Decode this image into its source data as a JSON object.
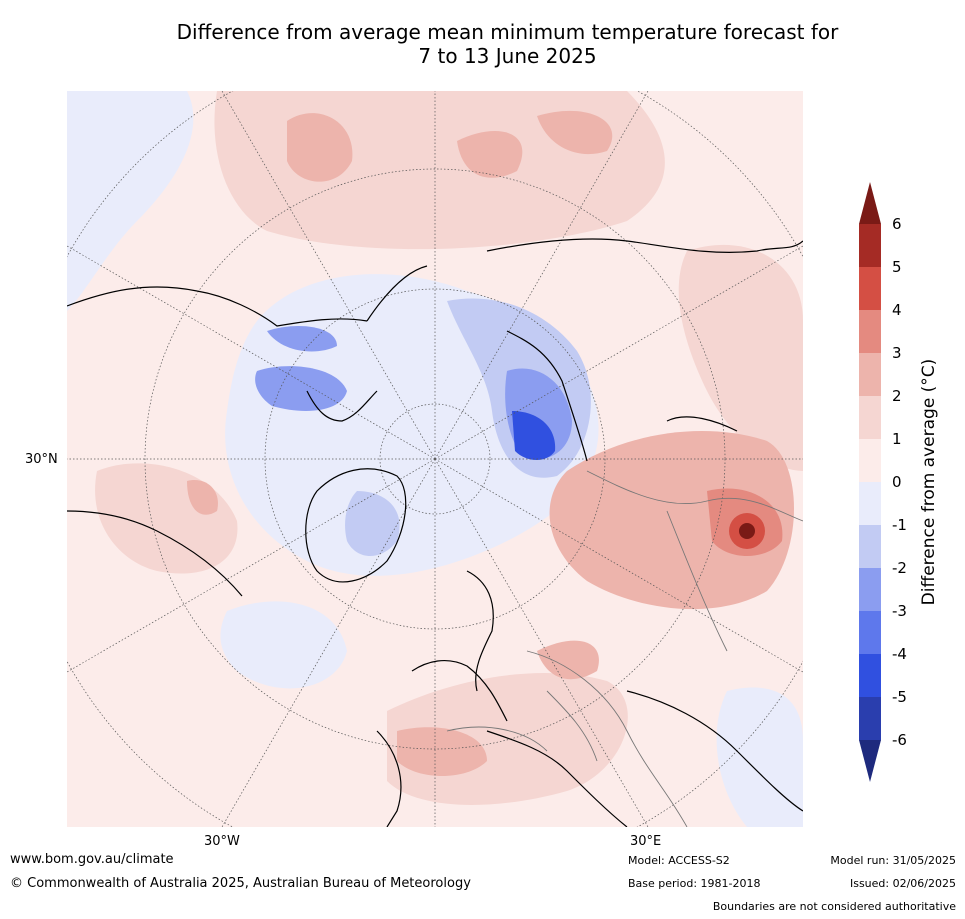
{
  "title_line1": "Difference from average mean minimum temperature forecast for",
  "title_line2": "7 to 13 June 2025",
  "lat_label": "30°N",
  "lon_labels": {
    "west": "30°W",
    "east": "30°E"
  },
  "colorbar": {
    "label_prefix": "Difference from average (",
    "label_unit": "°C",
    "label_suffix": ")",
    "ticks": [
      "6",
      "5",
      "4",
      "3",
      "2",
      "1",
      "0",
      "-1",
      "-2",
      "-3",
      "-4",
      "-5",
      "-6"
    ],
    "colors": [
      "#7a1a16",
      "#a52b25",
      "#d44f44",
      "#e48a80",
      "#edb4ac",
      "#f5d6d2",
      "#fcecea",
      "#e9ecfb",
      "#c2cbf3",
      "#8b9df0",
      "#5e78ec",
      "#3050e0",
      "#2a3eae",
      "#1e2a7e"
    ]
  },
  "footer": {
    "url": "www.bom.gov.au/climate",
    "copyright": "© Commonwealth of Australia 2025, Australian Bureau of Meteorology",
    "model": "Model: ACCESS-S2",
    "base_period": "Base period: 1981-2018",
    "model_run": "Model run: 31/05/2025",
    "issued": "Issued: 02/06/2025",
    "boundaries_note": "Boundaries are not considered authoritative"
  }
}
